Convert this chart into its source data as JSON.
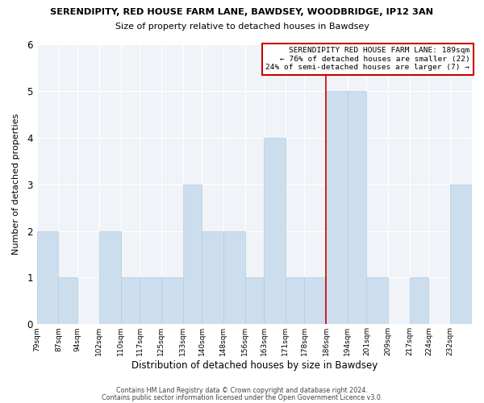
{
  "title1": "SERENDIPITY, RED HOUSE FARM LANE, BAWDSEY, WOODBRIDGE, IP12 3AN",
  "title2": "Size of property relative to detached houses in Bawdsey",
  "xlabel": "Distribution of detached houses by size in Bawdsey",
  "ylabel": "Number of detached properties",
  "footer1": "Contains HM Land Registry data © Crown copyright and database right 2024.",
  "footer2": "Contains public sector information licensed under the Open Government Licence v3.0.",
  "tick_positions": [
    79,
    87,
    94,
    102,
    110,
    117,
    125,
    133,
    140,
    148,
    156,
    163,
    171,
    178,
    186,
    194,
    201,
    209,
    217,
    224,
    232
  ],
  "bar_heights": [
    2,
    1,
    0,
    2,
    1,
    1,
    1,
    3,
    2,
    2,
    1,
    4,
    1,
    1,
    5,
    5,
    1,
    0,
    1,
    0,
    3
  ],
  "bar_color": "#ccdded",
  "bar_edgecolor": "#b0cce0",
  "red_line_x": 186,
  "annotation_title": "SERENDIPITY RED HOUSE FARM LANE: 189sqm",
  "annotation_line1": "← 76% of detached houses are smaller (22)",
  "annotation_line2": "24% of semi-detached houses are larger (7) →",
  "annotation_box_color": "#ffffff",
  "annotation_border_color": "#cc0000",
  "ylim": [
    0,
    6
  ],
  "yticks": [
    0,
    1,
    2,
    3,
    4,
    5,
    6
  ],
  "tick_labels": [
    "79sqm",
    "87sqm",
    "94sqm",
    "102sqm",
    "110sqm",
    "117sqm",
    "125sqm",
    "133sqm",
    "140sqm",
    "148sqm",
    "156sqm",
    "163sqm",
    "171sqm",
    "178sqm",
    "186sqm",
    "194sqm",
    "201sqm",
    "209sqm",
    "217sqm",
    "224sqm",
    "232sqm"
  ],
  "bg_color": "#f0f4f8"
}
